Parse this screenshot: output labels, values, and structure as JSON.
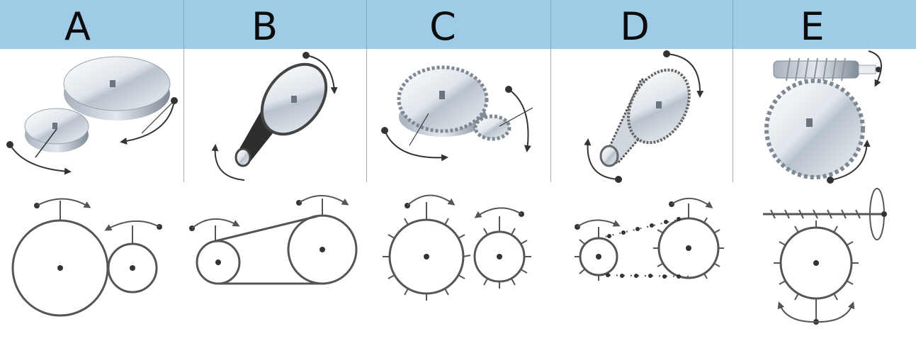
{
  "header": {
    "background": "#9fcbe6",
    "columns": [
      {
        "label": "A"
      },
      {
        "label": "B"
      },
      {
        "label": "C"
      },
      {
        "label": "D"
      },
      {
        "label": "E"
      }
    ]
  },
  "colors": {
    "line": "#555555",
    "metal_light": "#eef2f6",
    "metal_dark": "#8c97a3"
  },
  "icons": [
    "friction-wheels-icon",
    "belt-drive-icon",
    "spur-gears-icon",
    "chain-drive-icon",
    "worm-gear-icon"
  ]
}
